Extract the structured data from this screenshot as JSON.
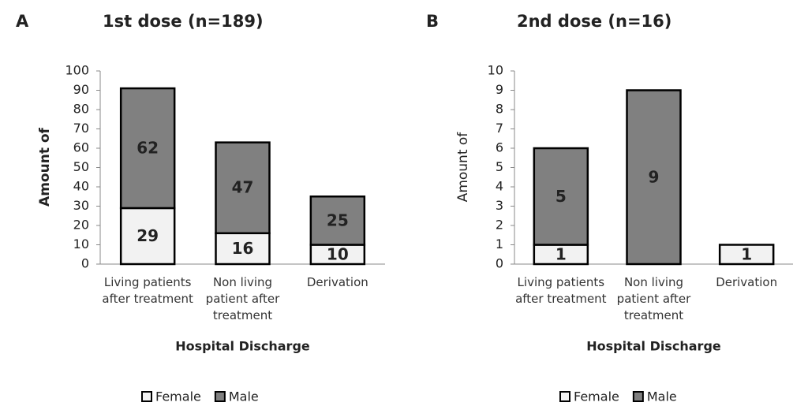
{
  "chart_data": [
    {
      "type": "stacked_bar",
      "panel_label": "A",
      "title": "1st dose (n=189)",
      "y_label": "Amount of",
      "x_label": "Hospital Discharge",
      "categories": [
        "Living patients after treatment",
        "Non living patient after treatment",
        "Derivation"
      ],
      "series": [
        {
          "name": "Female",
          "color": "#f2f2f2",
          "values": [
            29,
            16,
            10
          ]
        },
        {
          "name": "Male",
          "color": "#808080",
          "values": [
            62,
            47,
            25
          ]
        }
      ],
      "ylim": [
        0,
        100
      ],
      "yticks": [
        0,
        10,
        20,
        30,
        40,
        50,
        60,
        70,
        80,
        90,
        100
      ]
    },
    {
      "type": "stacked_bar",
      "panel_label": "B",
      "title": "2nd dose (n=16)",
      "y_label": "Amount of",
      "x_label": "Hospital Discharge",
      "categories": [
        "Living patients after treatment",
        "Non living patient after treatment",
        "Derivation"
      ],
      "series": [
        {
          "name": "Female",
          "color": "#f2f2f2",
          "values": [
            1,
            null,
            1
          ]
        },
        {
          "name": "Male",
          "color": "#808080",
          "values": [
            5,
            9,
            null
          ]
        }
      ],
      "ylim": [
        0,
        10
      ],
      "yticks": [
        0,
        1,
        2,
        3,
        4,
        5,
        6,
        7,
        8,
        9,
        10
      ]
    }
  ]
}
